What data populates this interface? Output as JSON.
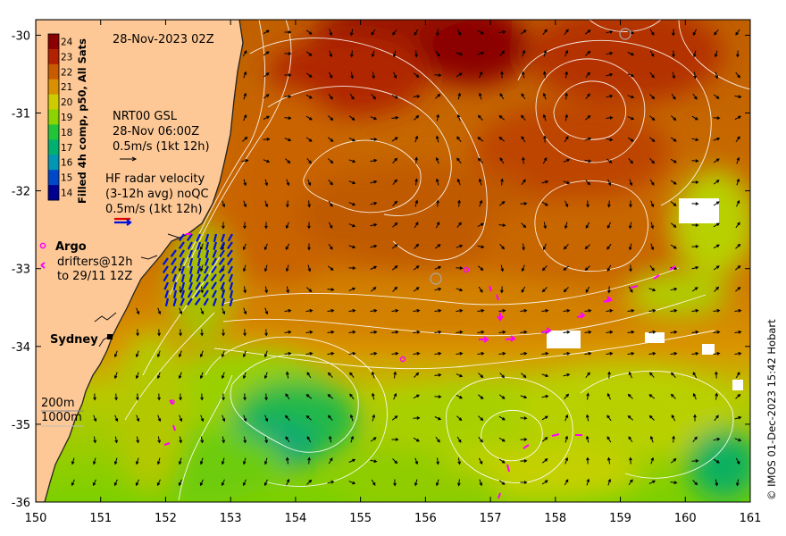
{
  "map": {
    "timestamp": "28-Nov-2023 02Z",
    "extent": {
      "lon": [
        150,
        161
      ],
      "lat": [
        -36,
        -29.8
      ]
    },
    "lon_ticks": [
      "150",
      "151",
      "152",
      "153",
      "154",
      "155",
      "156",
      "157",
      "158",
      "159",
      "160",
      "161"
    ],
    "lat_ticks": [
      "-30",
      "-31",
      "-32",
      "-33",
      "-34",
      "-35",
      "-36"
    ],
    "colorbar": {
      "label": "Filled 4h comp, p50, All Sats",
      "ticks": [
        "24",
        "23",
        "22",
        "21",
        "20",
        "19",
        "18",
        "17",
        "16",
        "15",
        "14"
      ],
      "colors": {
        "24": "#8b0000",
        "23": "#b22200",
        "22": "#c85a00",
        "21": "#d99000",
        "20": "#cccc00",
        "19": "#8cd400",
        "18": "#22c43a",
        "17": "#00b070",
        "16": "#0096b4",
        "15": "#0048c8",
        "14": "#000090"
      }
    },
    "legend": {
      "gsl_title": "NRT00 GSL",
      "gsl_time": "28-Nov 06:00Z",
      "gsl_scale": "0.5m/s (1kt 12h)",
      "hf_line1": "HF radar velocity",
      "hf_line2": "(3-12h avg) noQC",
      "hf_scale": "0.5m/s (1kt 12h)",
      "argo_label": "Argo",
      "drifters_line1": "drifters@12h",
      "drifters_line2": "to 29/11 12Z"
    },
    "place_label": "Sydney",
    "depth_labels": [
      "200m",
      "1000m"
    ],
    "credit": "© IMOS 01-Dec-2023 15:42 Hobart",
    "colors": {
      "land": "#fdc896",
      "coast": "#111111",
      "contour": "#ffffff",
      "hf_arrows": "#0010dd",
      "drifters": "#ff00ff",
      "gsl_arrows": "#000000"
    }
  }
}
